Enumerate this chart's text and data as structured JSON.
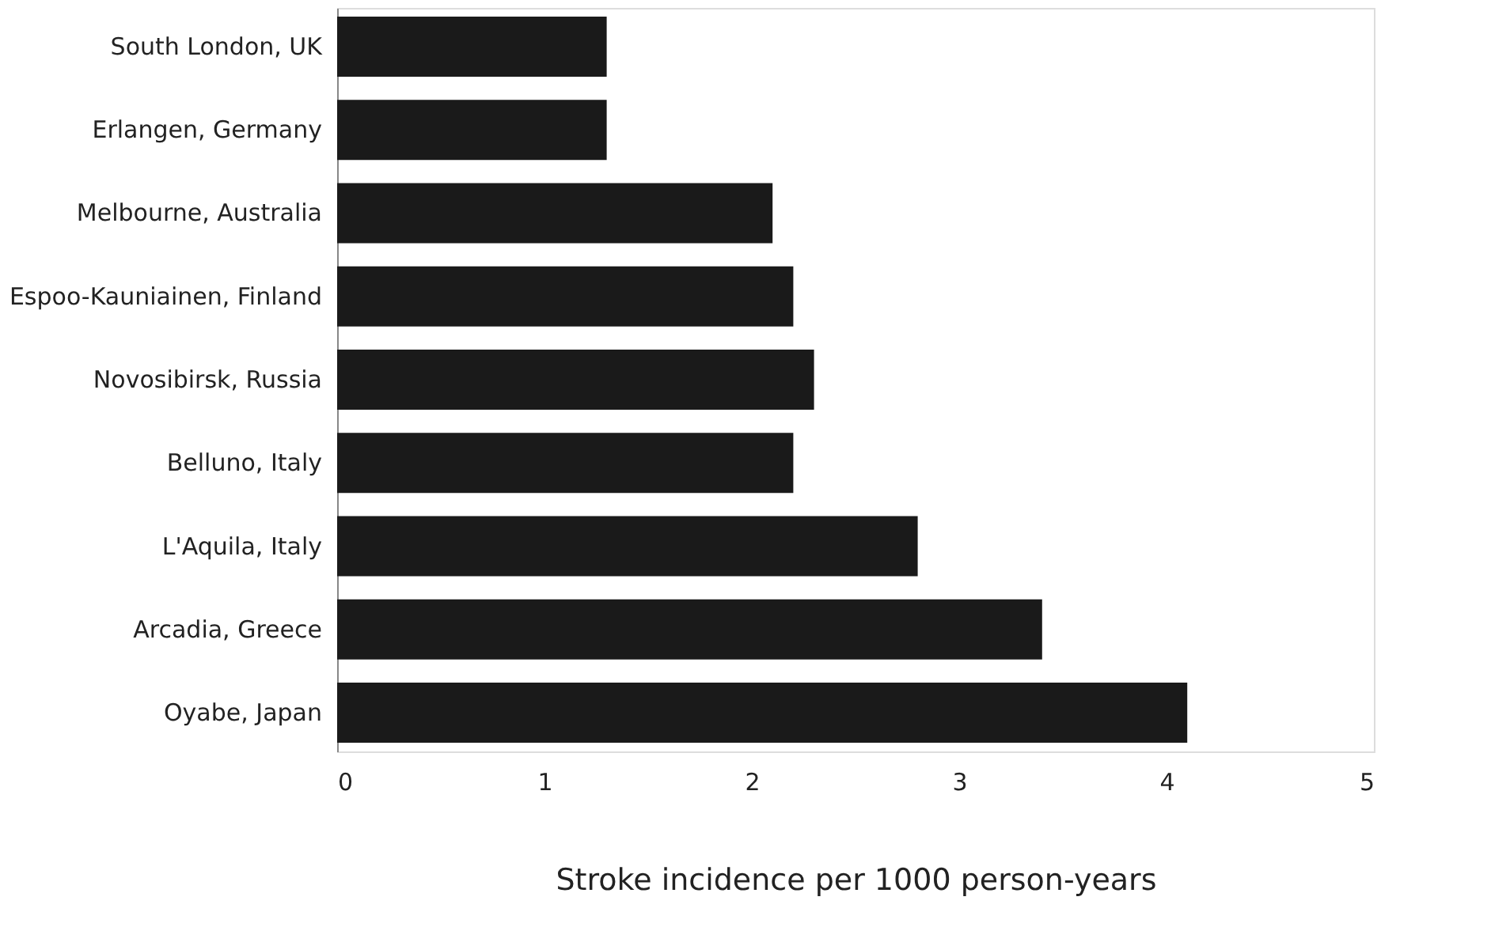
{
  "chart_data": {
    "type": "bar",
    "orientation": "horizontal",
    "xlabel": "Stroke incidence per 1000 person-years",
    "categories": [
      "South London, UK",
      "Erlangen, Germany",
      "Melbourne, Australia",
      "Espoo-Kauniainen, Finland",
      "Novosibirsk, Russia",
      "Belluno, Italy",
      "L'Aquila, Italy",
      "Arcadia, Greece",
      "Oyabe, Japan"
    ],
    "values": [
      1.3,
      1.3,
      2.1,
      2.2,
      2.3,
      2.2,
      2.8,
      3.4,
      4.1
    ],
    "color": "#1a1a1a",
    "xlim": [
      0,
      5
    ],
    "xticks": [
      0,
      1,
      2,
      3,
      4,
      5
    ],
    "grid": false
  }
}
